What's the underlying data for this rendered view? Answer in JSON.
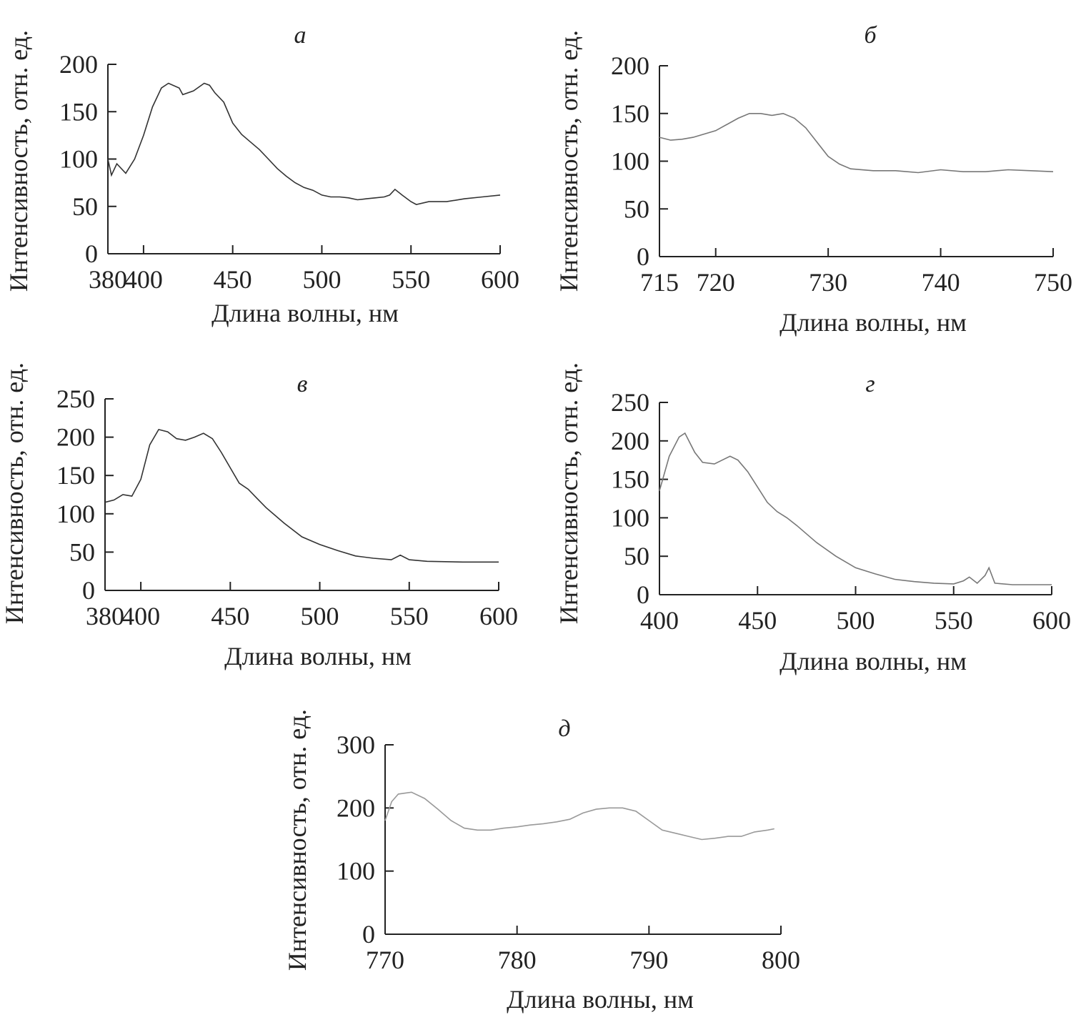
{
  "chart_data": [
    {
      "id": "a",
      "type": "line",
      "title": "а",
      "xlabel": "Длина волны, нм",
      "ylabel": "Интенсивность, отн. ед.",
      "xlim": [
        380,
        600
      ],
      "ylim": [
        0,
        200
      ],
      "xticks": [
        380,
        400,
        450,
        500,
        550,
        600
      ],
      "yticks": [
        0,
        50,
        100,
        150,
        200
      ],
      "x": [
        380,
        382,
        385,
        390,
        395,
        400,
        405,
        410,
        414,
        420,
        422,
        428,
        434,
        437,
        440,
        445,
        450,
        455,
        460,
        465,
        470,
        475,
        480,
        485,
        490,
        495,
        500,
        505,
        510,
        515,
        520,
        525,
        530,
        535,
        538,
        541,
        545,
        550,
        553,
        560,
        570,
        580,
        590,
        600
      ],
      "y": [
        100,
        83,
        95,
        85,
        100,
        125,
        155,
        175,
        180,
        175,
        168,
        172,
        180,
        178,
        170,
        160,
        138,
        126,
        118,
        110,
        100,
        90,
        82,
        75,
        70,
        67,
        62,
        60,
        60,
        59,
        57,
        58,
        59,
        60,
        62,
        68,
        62,
        55,
        52,
        55,
        55,
        58,
        60,
        62
      ],
      "color": "#333333"
    },
    {
      "id": "b",
      "type": "line",
      "title": "б",
      "xlabel": "Длина волны, нм",
      "ylabel": "Интенсивность, отн. ед.",
      "xlim": [
        715,
        750
      ],
      "ylim": [
        0,
        200
      ],
      "xticks": [
        715,
        720,
        730,
        740,
        750
      ],
      "yticks": [
        0,
        50,
        100,
        150,
        200
      ],
      "x": [
        715,
        716,
        717,
        718,
        720,
        722,
        723,
        724,
        725,
        726,
        727,
        728,
        729,
        730,
        731,
        732,
        734,
        736,
        738,
        740,
        742,
        744,
        746,
        748,
        750
      ],
      "y": [
        125,
        122,
        123,
        125,
        132,
        145,
        150,
        150,
        148,
        150,
        145,
        135,
        120,
        105,
        97,
        92,
        90,
        90,
        88,
        91,
        89,
        89,
        91,
        90,
        89
      ],
      "color": "#777777"
    },
    {
      "id": "v",
      "type": "line",
      "title": "в",
      "xlabel": "Длина волны, нм",
      "ylabel": "Интенсивность, отн. ед.",
      "xlim": [
        380,
        600
      ],
      "ylim": [
        0,
        250
      ],
      "xticks": [
        380,
        400,
        450,
        500,
        550,
        600
      ],
      "yticks": [
        0,
        50,
        100,
        150,
        200,
        250
      ],
      "x": [
        380,
        385,
        390,
        395,
        400,
        405,
        410,
        415,
        420,
        425,
        430,
        435,
        440,
        445,
        450,
        455,
        460,
        465,
        470,
        480,
        490,
        500,
        510,
        520,
        530,
        540,
        545,
        550,
        560,
        580,
        600
      ],
      "y": [
        115,
        118,
        125,
        123,
        145,
        190,
        210,
        207,
        198,
        196,
        200,
        205,
        198,
        180,
        160,
        140,
        132,
        120,
        108,
        88,
        70,
        60,
        52,
        45,
        42,
        40,
        46,
        40,
        38,
        37,
        37
      ],
      "color": "#333333"
    },
    {
      "id": "g",
      "type": "line",
      "title": "г",
      "xlabel": "Длина волны, нм",
      "ylabel": "Интенсивность, отн. ед.",
      "xlim": [
        400,
        600
      ],
      "ylim": [
        0,
        250
      ],
      "xticks": [
        400,
        450,
        500,
        550,
        600
      ],
      "yticks": [
        0,
        50,
        100,
        150,
        200,
        250
      ],
      "x": [
        400,
        405,
        410,
        413,
        418,
        422,
        428,
        432,
        436,
        440,
        445,
        450,
        455,
        460,
        465,
        470,
        480,
        490,
        500,
        510,
        520,
        530,
        540,
        550,
        555,
        558,
        562,
        566,
        568,
        571,
        580,
        600
      ],
      "y": [
        135,
        180,
        205,
        210,
        185,
        172,
        170,
        175,
        180,
        175,
        160,
        140,
        120,
        108,
        100,
        90,
        68,
        50,
        35,
        27,
        20,
        17,
        15,
        14,
        18,
        23,
        15,
        25,
        35,
        15,
        13,
        13
      ],
      "color": "#777777"
    },
    {
      "id": "d",
      "type": "line",
      "title": "д",
      "xlabel": "Длина волны, нм",
      "ylabel": "Интенсивность, отн. ед.",
      "xlim": [
        770,
        800
      ],
      "ylim": [
        0,
        300
      ],
      "xticks": [
        770,
        780,
        790,
        800
      ],
      "yticks": [
        0,
        100,
        200,
        300
      ],
      "x": [
        770,
        770.5,
        771,
        772,
        773,
        774,
        775,
        776,
        777,
        778,
        779,
        780,
        781,
        782,
        783,
        784,
        785,
        786,
        787,
        788,
        789,
        790,
        791,
        792,
        793,
        794,
        795,
        796,
        797,
        798,
        799,
        799.5
      ],
      "y": [
        180,
        210,
        222,
        225,
        215,
        198,
        180,
        168,
        165,
        165,
        168,
        170,
        173,
        175,
        178,
        182,
        192,
        198,
        200,
        200,
        195,
        180,
        165,
        160,
        155,
        150,
        152,
        155,
        155,
        162,
        165,
        167
      ],
      "color": "#999999"
    }
  ]
}
